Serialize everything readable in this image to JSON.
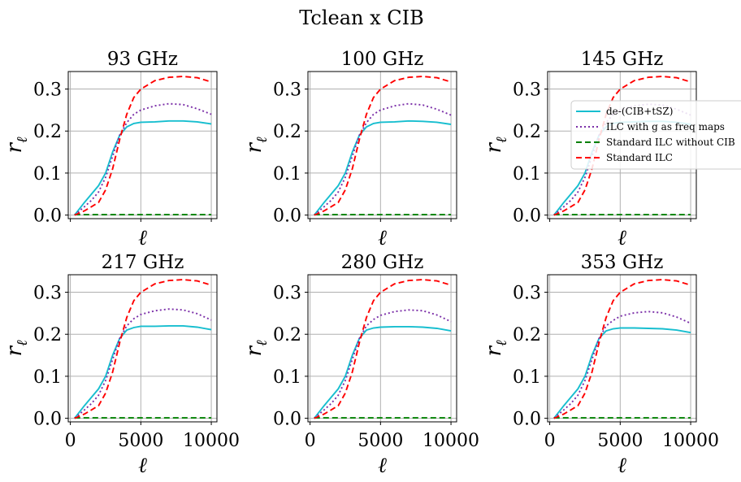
{
  "figure": {
    "title": "Tclean x CIB"
  },
  "colors": {
    "de_cib_tsz": "#17becf",
    "ilc_g": "#7b2fa8",
    "std_no_cib": "#008000",
    "std_ilc": "#ff0000",
    "grid": "#b0b0b0"
  },
  "legend": {
    "location": "right, overlapping the 145 GHz panel",
    "entries": [
      {
        "label": "de-(CIB+tSZ)",
        "series": "de_cib_tsz",
        "style": "solid"
      },
      {
        "label": "ILC with g as freq maps",
        "series": "ilc_g",
        "style": "dotted"
      },
      {
        "label": "Standard ILC without CIB",
        "series": "std_no_cib",
        "style": "dashed"
      },
      {
        "label": "Standard ILC",
        "series": "std_ilc",
        "style": "dashed"
      }
    ]
  },
  "chart_data": [
    {
      "type": "line",
      "title": "93 GHz",
      "xlabel": "ℓ",
      "ylabel": "r_ℓ",
      "xlim": [
        0,
        10000
      ],
      "ylim": [
        0,
        0.34
      ],
      "grid": true,
      "xticks": [
        0,
        5000,
        10000
      ],
      "yticks": [
        0.0,
        0.1,
        0.2,
        0.3
      ],
      "x": [
        300,
        1000,
        1500,
        2000,
        2500,
        3000,
        3500,
        4000,
        4500,
        5000,
        6000,
        7000,
        8000,
        9000,
        10000
      ],
      "series": [
        {
          "name": "de-(CIB+tSZ)",
          "key": "de_cib_tsz",
          "values": [
            0.0,
            0.03,
            0.05,
            0.07,
            0.1,
            0.15,
            0.19,
            0.21,
            0.218,
            0.221,
            0.222,
            0.224,
            0.224,
            0.222,
            0.217
          ]
        },
        {
          "name": "ILC with g as freq maps",
          "key": "ilc_g",
          "values": [
            0.0,
            0.02,
            0.035,
            0.055,
            0.09,
            0.14,
            0.19,
            0.22,
            0.24,
            0.25,
            0.26,
            0.265,
            0.263,
            0.253,
            0.24
          ]
        },
        {
          "name": "Standard ILC without CIB",
          "key": "std_no_cib",
          "values": [
            0.001,
            0.001,
            0.001,
            0.001,
            0.001,
            0.001,
            0.001,
            0.001,
            0.001,
            0.001,
            0.001,
            0.001,
            0.001,
            0.001,
            0.001
          ]
        },
        {
          "name": "Standard ILC",
          "key": "std_ilc",
          "values": [
            0.0,
            0.01,
            0.02,
            0.03,
            0.06,
            0.11,
            0.18,
            0.24,
            0.28,
            0.3,
            0.32,
            0.328,
            0.33,
            0.327,
            0.317
          ]
        }
      ]
    },
    {
      "type": "line",
      "title": "100 GHz",
      "xlabel": "ℓ",
      "ylabel": "r_ℓ",
      "xlim": [
        0,
        10000
      ],
      "ylim": [
        0,
        0.34
      ],
      "grid": true,
      "xticks": [
        0,
        5000,
        10000
      ],
      "yticks": [
        0.0,
        0.1,
        0.2,
        0.3
      ],
      "x": [
        300,
        1000,
        1500,
        2000,
        2500,
        3000,
        3500,
        4000,
        4500,
        5000,
        6000,
        7000,
        8000,
        9000,
        10000
      ],
      "series": [
        {
          "name": "de-(CIB+tSZ)",
          "key": "de_cib_tsz",
          "values": [
            0.0,
            0.03,
            0.05,
            0.07,
            0.1,
            0.15,
            0.19,
            0.21,
            0.218,
            0.221,
            0.222,
            0.224,
            0.223,
            0.221,
            0.216
          ]
        },
        {
          "name": "ILC with g as freq maps",
          "key": "ilc_g",
          "values": [
            0.0,
            0.02,
            0.035,
            0.055,
            0.09,
            0.14,
            0.19,
            0.22,
            0.24,
            0.25,
            0.26,
            0.265,
            0.262,
            0.252,
            0.238
          ]
        },
        {
          "name": "Standard ILC without CIB",
          "key": "std_no_cib",
          "values": [
            0.001,
            0.001,
            0.001,
            0.001,
            0.001,
            0.001,
            0.001,
            0.001,
            0.001,
            0.001,
            0.001,
            0.001,
            0.001,
            0.001,
            0.001
          ]
        },
        {
          "name": "Standard ILC",
          "key": "std_ilc",
          "values": [
            0.0,
            0.01,
            0.02,
            0.03,
            0.06,
            0.11,
            0.18,
            0.24,
            0.28,
            0.3,
            0.32,
            0.328,
            0.33,
            0.327,
            0.317
          ]
        }
      ]
    },
    {
      "type": "line",
      "title": "145 GHz",
      "xlabel": "ℓ",
      "ylabel": "r_ℓ",
      "xlim": [
        0,
        10000
      ],
      "ylim": [
        0,
        0.34
      ],
      "grid": true,
      "xticks": [
        0,
        5000,
        10000
      ],
      "yticks": [
        0.0,
        0.1,
        0.2,
        0.3
      ],
      "x": [
        300,
        1000,
        1500,
        2000,
        2500,
        3000,
        3500,
        4000,
        4500,
        5000,
        6000,
        7000,
        8000,
        9000,
        10000
      ],
      "series": [
        {
          "name": "de-(CIB+tSZ)",
          "key": "de_cib_tsz",
          "values": [
            0.0,
            0.03,
            0.05,
            0.07,
            0.1,
            0.15,
            0.19,
            0.21,
            0.218,
            0.221,
            0.222,
            0.223,
            0.223,
            0.221,
            0.216
          ]
        },
        {
          "name": "ILC with g as freq maps",
          "key": "ilc_g",
          "values": [
            0.0,
            0.02,
            0.035,
            0.055,
            0.09,
            0.14,
            0.19,
            0.22,
            0.24,
            0.25,
            0.26,
            0.264,
            0.262,
            0.252,
            0.238
          ]
        },
        {
          "name": "Standard ILC without CIB",
          "key": "std_no_cib",
          "values": [
            0.001,
            0.001,
            0.001,
            0.001,
            0.001,
            0.001,
            0.001,
            0.001,
            0.001,
            0.001,
            0.001,
            0.001,
            0.001,
            0.001,
            0.001
          ]
        },
        {
          "name": "Standard ILC",
          "key": "std_ilc",
          "values": [
            0.0,
            0.01,
            0.02,
            0.03,
            0.06,
            0.11,
            0.18,
            0.24,
            0.28,
            0.3,
            0.32,
            0.328,
            0.33,
            0.327,
            0.317
          ]
        }
      ]
    },
    {
      "type": "line",
      "title": "217 GHz",
      "xlabel": "ℓ",
      "ylabel": "r_ℓ",
      "xlim": [
        0,
        10000
      ],
      "ylim": [
        0,
        0.34
      ],
      "grid": true,
      "xticks": [
        0,
        5000,
        10000
      ],
      "yticks": [
        0.0,
        0.1,
        0.2,
        0.3
      ],
      "x": [
        300,
        1000,
        1500,
        2000,
        2500,
        3000,
        3500,
        4000,
        4500,
        5000,
        6000,
        7000,
        8000,
        9000,
        10000
      ],
      "series": [
        {
          "name": "de-(CIB+tSZ)",
          "key": "de_cib_tsz",
          "values": [
            0.0,
            0.03,
            0.05,
            0.07,
            0.1,
            0.15,
            0.19,
            0.21,
            0.216,
            0.219,
            0.219,
            0.22,
            0.22,
            0.217,
            0.211
          ]
        },
        {
          "name": "ILC with g as freq maps",
          "key": "ilc_g",
          "values": [
            0.0,
            0.02,
            0.035,
            0.055,
            0.09,
            0.14,
            0.19,
            0.22,
            0.237,
            0.247,
            0.256,
            0.26,
            0.258,
            0.249,
            0.234
          ]
        },
        {
          "name": "Standard ILC without CIB",
          "key": "std_no_cib",
          "values": [
            0.001,
            0.001,
            0.001,
            0.001,
            0.001,
            0.001,
            0.001,
            0.001,
            0.001,
            0.001,
            0.001,
            0.001,
            0.001,
            0.001,
            0.001
          ]
        },
        {
          "name": "Standard ILC",
          "key": "std_ilc",
          "values": [
            0.0,
            0.01,
            0.02,
            0.03,
            0.06,
            0.11,
            0.18,
            0.24,
            0.28,
            0.3,
            0.32,
            0.328,
            0.33,
            0.327,
            0.317
          ]
        }
      ]
    },
    {
      "type": "line",
      "title": "280 GHz",
      "xlabel": "ℓ",
      "ylabel": "r_ℓ",
      "xlim": [
        0,
        10000
      ],
      "ylim": [
        0,
        0.34
      ],
      "grid": true,
      "xticks": [
        0,
        5000,
        10000
      ],
      "yticks": [
        0.0,
        0.1,
        0.2,
        0.3
      ],
      "x": [
        300,
        1000,
        1500,
        2000,
        2500,
        3000,
        3500,
        4000,
        4500,
        5000,
        6000,
        7000,
        8000,
        9000,
        10000
      ],
      "series": [
        {
          "name": "de-(CIB+tSZ)",
          "key": "de_cib_tsz",
          "values": [
            0.0,
            0.03,
            0.05,
            0.07,
            0.1,
            0.15,
            0.19,
            0.21,
            0.215,
            0.217,
            0.218,
            0.218,
            0.217,
            0.214,
            0.208
          ]
        },
        {
          "name": "ILC with g as freq maps",
          "key": "ilc_g",
          "values": [
            0.0,
            0.02,
            0.035,
            0.055,
            0.09,
            0.14,
            0.19,
            0.22,
            0.235,
            0.245,
            0.254,
            0.258,
            0.256,
            0.246,
            0.23
          ]
        },
        {
          "name": "Standard ILC without CIB",
          "key": "std_no_cib",
          "values": [
            0.001,
            0.001,
            0.001,
            0.001,
            0.001,
            0.001,
            0.001,
            0.001,
            0.001,
            0.001,
            0.001,
            0.001,
            0.001,
            0.001,
            0.001
          ]
        },
        {
          "name": "Standard ILC",
          "key": "std_ilc",
          "values": [
            0.0,
            0.01,
            0.02,
            0.03,
            0.06,
            0.11,
            0.18,
            0.24,
            0.28,
            0.3,
            0.32,
            0.328,
            0.33,
            0.327,
            0.317
          ]
        }
      ]
    },
    {
      "type": "line",
      "title": "353 GHz",
      "xlabel": "ℓ",
      "ylabel": "r_ℓ",
      "xlim": [
        0,
        10000
      ],
      "ylim": [
        0,
        0.34
      ],
      "grid": true,
      "xticks": [
        0,
        5000,
        10000
      ],
      "yticks": [
        0.0,
        0.1,
        0.2,
        0.3
      ],
      "x": [
        300,
        1000,
        1500,
        2000,
        2500,
        3000,
        3500,
        4000,
        4500,
        5000,
        6000,
        7000,
        8000,
        9000,
        10000
      ],
      "series": [
        {
          "name": "de-(CIB+tSZ)",
          "key": "de_cib_tsz",
          "values": [
            0.0,
            0.03,
            0.05,
            0.07,
            0.1,
            0.15,
            0.19,
            0.208,
            0.213,
            0.215,
            0.215,
            0.214,
            0.213,
            0.21,
            0.204
          ]
        },
        {
          "name": "ILC with g as freq maps",
          "key": "ilc_g",
          "values": [
            0.0,
            0.02,
            0.035,
            0.055,
            0.09,
            0.14,
            0.19,
            0.22,
            0.233,
            0.243,
            0.251,
            0.254,
            0.251,
            0.241,
            0.226
          ]
        },
        {
          "name": "Standard ILC without CIB",
          "key": "std_no_cib",
          "values": [
            0.001,
            0.001,
            0.001,
            0.001,
            0.001,
            0.001,
            0.001,
            0.001,
            0.001,
            0.001,
            0.001,
            0.001,
            0.001,
            0.001,
            0.001
          ]
        },
        {
          "name": "Standard ILC",
          "key": "std_ilc",
          "values": [
            0.0,
            0.01,
            0.02,
            0.03,
            0.06,
            0.11,
            0.18,
            0.24,
            0.28,
            0.3,
            0.32,
            0.328,
            0.33,
            0.327,
            0.317
          ]
        }
      ]
    }
  ]
}
